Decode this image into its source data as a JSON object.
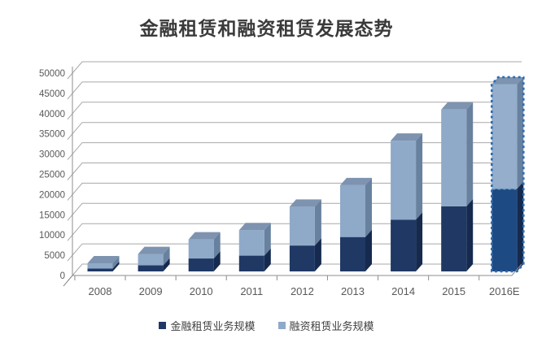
{
  "title": "金融租赁和融资租赁发展态势",
  "chart_data": {
    "type": "bar",
    "subtype": "stacked-3d-column",
    "title": "金融租赁和融资租赁发展态势",
    "categories": [
      "2008",
      "2009",
      "2010",
      "2011",
      "2012",
      "2013",
      "2014",
      "2015",
      "2016E"
    ],
    "series": [
      {
        "name": "金融租赁业务规模",
        "values": [
          700,
          1500,
          3200,
          3900,
          6400,
          8500,
          12800,
          16100,
          20400
        ],
        "color": {
          "front": "#1F3864",
          "side": "#152A4E",
          "top": "#1A3055"
        }
      },
      {
        "name": "融资租赁业务规模",
        "values": [
          1300,
          2800,
          4700,
          6300,
          9600,
          12800,
          19500,
          23900,
          25800
        ],
        "color": {
          "front": "#8FA9C8",
          "side": "#68819F",
          "top": "#7D93B0"
        }
      }
    ],
    "forecast": {
      "category": "2016E",
      "fill_dark": "#1D4A83",
      "fill_light": "#94AECC",
      "outline_color": "#2B6CB4",
      "boundary_dash_color": "#7FA6D2"
    },
    "ylim": [
      0,
      50000
    ],
    "ytick_step": 5000,
    "ytick_labels": [
      "0",
      "5000",
      "10000",
      "15000",
      "20000",
      "25000",
      "30000",
      "35000",
      "40000",
      "45000",
      "50000"
    ],
    "grid": true,
    "legend_position": "bottom",
    "colors": {
      "gridline": "#A8A8A8",
      "axis_line": "#8C8C8C",
      "tick_label": "#595959",
      "title_text": "#3A3A3A"
    }
  }
}
